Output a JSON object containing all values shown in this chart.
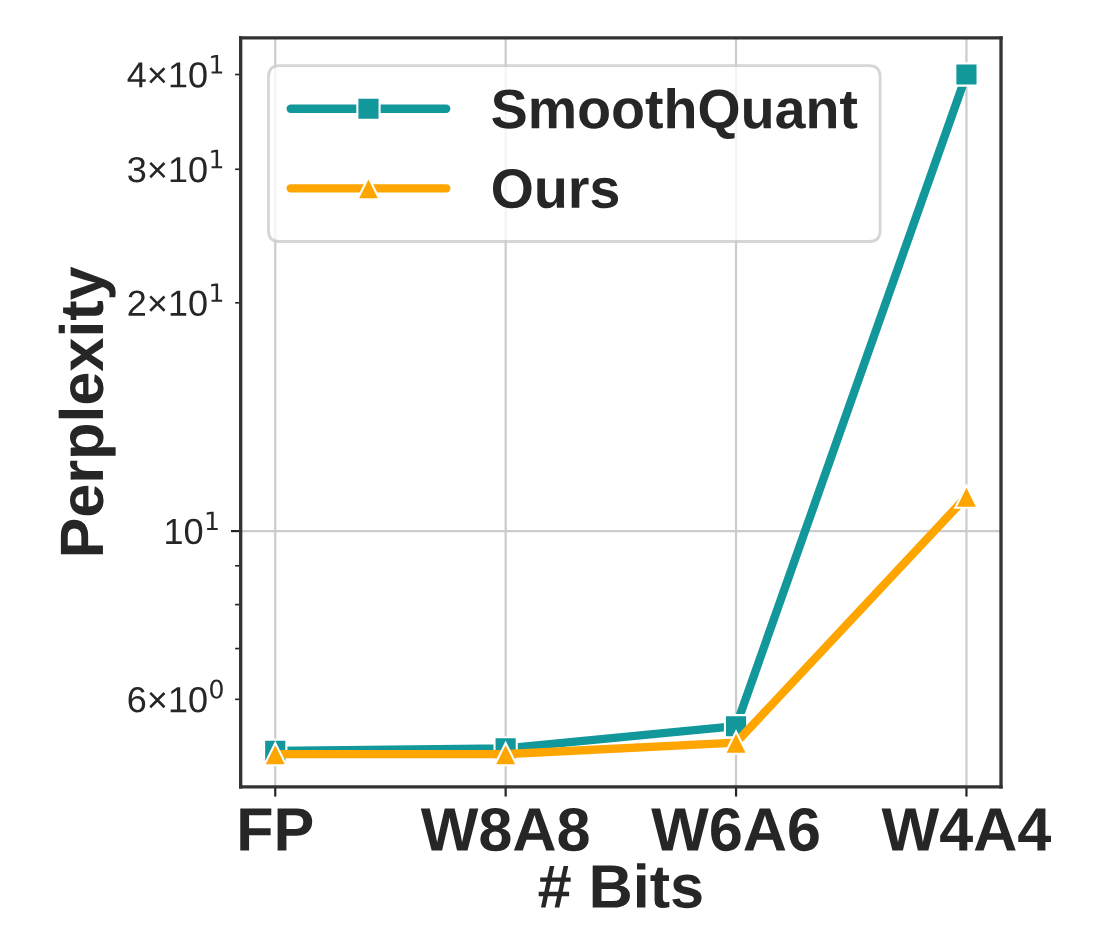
{
  "chart_data": {
    "type": "line",
    "xlabel": "# Bits",
    "ylabel": "Perplexity",
    "categories": [
      "FP",
      "W8A8",
      "W6A6",
      "W4A4"
    ],
    "series": [
      {
        "name": "SmoothQuant",
        "color": "#12979b",
        "values": [
          5.13,
          5.17,
          5.53,
          40
        ],
        "marker": "square"
      },
      {
        "name": "Ours",
        "color": "#ffa500",
        "values": [
          5.08,
          5.08,
          5.26,
          11.1
        ],
        "marker": "triangle"
      }
    ],
    "log": "y",
    "ylim": [
      4.6,
      44.7
    ],
    "yticks": [
      {
        "value": 6,
        "label": "6×10$^{0}$"
      },
      {
        "value": 7,
        "label": null
      },
      {
        "value": 8,
        "label": null
      },
      {
        "value": 9,
        "label": null
      },
      {
        "value": 10,
        "label": "10$^{1}$"
      },
      {
        "value": 20,
        "label": "2×10$^{1}$"
      },
      {
        "value": 30,
        "label": "3×10$^{1}$"
      },
      {
        "value": 40,
        "label": "4×10$^{1}$"
      }
    ],
    "grid": true,
    "legend": "top left",
    "line_style": "solid"
  }
}
